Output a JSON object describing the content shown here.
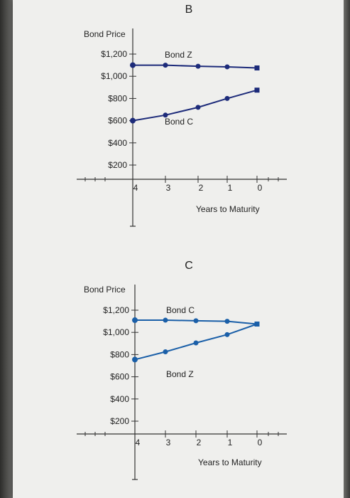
{
  "chart_data": [
    {
      "type": "line",
      "title": "B",
      "ylabel": "Bond Price",
      "xlabel": "Years to Maturity",
      "x": [
        4,
        3,
        2,
        1,
        0
      ],
      "x_tick_labels": [
        "4",
        "3",
        "2",
        "1",
        "0"
      ],
      "y_tick_labels": [
        "$1,200",
        "$1,000",
        "$800",
        "$600",
        "$400",
        "$200"
      ],
      "y_ticks": [
        1200,
        1000,
        800,
        600,
        400,
        200
      ],
      "ylim": [
        0,
        1300
      ],
      "x_direction": "decreasing",
      "grid": false,
      "series": [
        {
          "name": "Bond Z",
          "values": [
            1100,
            1100,
            1090,
            1085,
            1075
          ],
          "color": "#1d2b7a"
        },
        {
          "name": "Bond C",
          "values": [
            600,
            650,
            720,
            800,
            875
          ],
          "color": "#1d2b7a"
        }
      ]
    },
    {
      "type": "line",
      "title": "C",
      "ylabel": "Bond Price",
      "xlabel": "Years to Maturity",
      "x": [
        4,
        3,
        2,
        1,
        0
      ],
      "x_tick_labels": [
        "4",
        "3",
        "2",
        "1",
        "0"
      ],
      "y_tick_labels": [
        "$1,200",
        "$1,000",
        "$800",
        "$600",
        "$400",
        "$200"
      ],
      "y_ticks": [
        1200,
        1000,
        800,
        600,
        400,
        200
      ],
      "ylim": [
        0,
        1300
      ],
      "x_direction": "decreasing",
      "grid": false,
      "series": [
        {
          "name": "Bond C",
          "values": [
            1110,
            1110,
            1105,
            1100,
            1075
          ],
          "color": "#1a5fa8"
        },
        {
          "name": "Bond Z",
          "values": [
            755,
            825,
            905,
            980,
            1075
          ],
          "color": "#1a5fa8"
        }
      ]
    }
  ]
}
